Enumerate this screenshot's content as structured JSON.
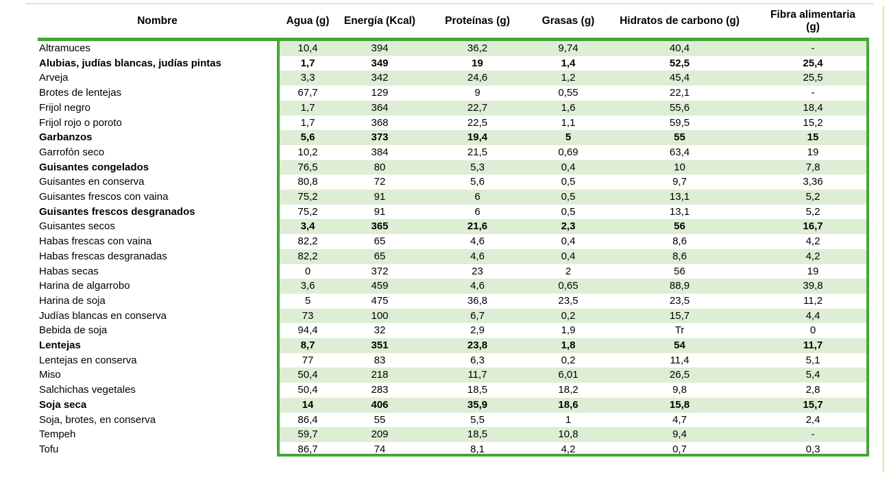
{
  "table": {
    "columns": [
      "Nombre",
      "Agua (g)",
      "Energía (Kcal)",
      "Proteínas (g)",
      "Grasas (g)",
      "Hidratos de carbono (g)",
      "Fibra alimentaria (g)"
    ],
    "rows": [
      {
        "name": "Altramuces",
        "bold_name": false,
        "bold_values": false,
        "values": [
          "10,4",
          "394",
          "36,2",
          "9,74",
          "40,4",
          "-"
        ]
      },
      {
        "name": "Alubias, judías blancas, judías pintas",
        "bold_name": true,
        "bold_values": true,
        "values": [
          "1,7",
          "349",
          "19",
          "1,4",
          "52,5",
          "25,4"
        ]
      },
      {
        "name": "Arveja",
        "bold_name": false,
        "bold_values": false,
        "values": [
          "3,3",
          "342",
          "24,6",
          "1,2",
          "45,4",
          "25,5"
        ]
      },
      {
        "name": "Brotes de lentejas",
        "bold_name": false,
        "bold_values": false,
        "values": [
          "67,7",
          "129",
          "9",
          "0,55",
          "22,1",
          "-"
        ]
      },
      {
        "name": "Frijol negro",
        "bold_name": false,
        "bold_values": false,
        "values": [
          "1,7",
          "364",
          "22,7",
          "1,6",
          "55,6",
          "18,4"
        ]
      },
      {
        "name": "Frijol rojo o poroto",
        "bold_name": false,
        "bold_values": false,
        "values": [
          "1,7",
          "368",
          "22,5",
          "1,1",
          "59,5",
          "15,2"
        ]
      },
      {
        "name": "Garbanzos",
        "bold_name": true,
        "bold_values": true,
        "values": [
          "5,6",
          "373",
          "19,4",
          "5",
          "55",
          "15"
        ]
      },
      {
        "name": "Garrofón seco",
        "bold_name": false,
        "bold_values": false,
        "values": [
          "10,2",
          "384",
          "21,5",
          "0,69",
          "63,4",
          "19"
        ]
      },
      {
        "name": "Guisantes congelados",
        "bold_name": true,
        "bold_values": false,
        "values": [
          "76,5",
          "80",
          "5,3",
          "0,4",
          "10",
          "7,8"
        ]
      },
      {
        "name": "Guisantes en conserva",
        "bold_name": false,
        "bold_values": false,
        "values": [
          "80,8",
          "72",
          "5,6",
          "0,5",
          "9,7",
          "3,36"
        ]
      },
      {
        "name": "Guisantes frescos con vaina",
        "bold_name": false,
        "bold_values": false,
        "values": [
          "75,2",
          "91",
          "6",
          "0,5",
          "13,1",
          "5,2"
        ]
      },
      {
        "name": "Guisantes frescos desgranados",
        "bold_name": true,
        "bold_values": false,
        "values": [
          "75,2",
          "91",
          "6",
          "0,5",
          "13,1",
          "5,2"
        ]
      },
      {
        "name": "Guisantes secos",
        "bold_name": false,
        "bold_values": true,
        "values": [
          "3,4",
          "365",
          "21,6",
          "2,3",
          "56",
          "16,7"
        ]
      },
      {
        "name": "Habas frescas con vaina",
        "bold_name": false,
        "bold_values": false,
        "values": [
          "82,2",
          "65",
          "4,6",
          "0,4",
          "8,6",
          "4,2"
        ]
      },
      {
        "name": "Habas frescas desgranadas",
        "bold_name": false,
        "bold_values": false,
        "values": [
          "82,2",
          "65",
          "4,6",
          "0,4",
          "8,6",
          "4,2"
        ]
      },
      {
        "name": "Habas secas",
        "bold_name": false,
        "bold_values": false,
        "values": [
          "0",
          "372",
          "23",
          "2",
          "56",
          "19"
        ]
      },
      {
        "name": "Harina de algarrobo",
        "bold_name": false,
        "bold_values": false,
        "values": [
          "3,6",
          "459",
          "4,6",
          "0,65",
          "88,9",
          "39,8"
        ]
      },
      {
        "name": "Harina de soja",
        "bold_name": false,
        "bold_values": false,
        "values": [
          "5",
          "475",
          "36,8",
          "23,5",
          "23,5",
          "11,2"
        ]
      },
      {
        "name": "Judías blancas en conserva",
        "bold_name": false,
        "bold_values": false,
        "values": [
          "73",
          "100",
          "6,7",
          "0,2",
          "15,7",
          "4,4"
        ]
      },
      {
        "name": "Bebida de soja",
        "bold_name": false,
        "bold_values": false,
        "values": [
          "94,4",
          "32",
          "2,9",
          "1,9",
          "Tr",
          "0"
        ]
      },
      {
        "name": "Lentejas",
        "bold_name": true,
        "bold_values": true,
        "values": [
          "8,7",
          "351",
          "23,8",
          "1,8",
          "54",
          "11,7"
        ]
      },
      {
        "name": "Lentejas en conserva",
        "bold_name": false,
        "bold_values": false,
        "values": [
          "77",
          "83",
          "6,3",
          "0,2",
          "11,4",
          "5,1"
        ]
      },
      {
        "name": "Miso",
        "bold_name": false,
        "bold_values": false,
        "values": [
          "50,4",
          "218",
          "11,7",
          "6,01",
          "26,5",
          "5,4"
        ]
      },
      {
        "name": "Salchichas vegetales",
        "bold_name": false,
        "bold_values": false,
        "values": [
          "50,4",
          "283",
          "18,5",
          "18,2",
          "9,8",
          "2,8"
        ]
      },
      {
        "name": "Soja seca",
        "bold_name": true,
        "bold_values": true,
        "values": [
          "14",
          "406",
          "35,9",
          "18,6",
          "15,8",
          "15,7"
        ]
      },
      {
        "name": "Soja, brotes, en conserva",
        "bold_name": false,
        "bold_values": false,
        "values": [
          "86,4",
          "55",
          "5,5",
          "1",
          "4,7",
          "2,4"
        ]
      },
      {
        "name": "Tempeh",
        "bold_name": false,
        "bold_values": false,
        "values": [
          "59,7",
          "209",
          "18,5",
          "10,8",
          "9,4",
          "-"
        ]
      },
      {
        "name": "Tofu",
        "bold_name": false,
        "bold_values": false,
        "values": [
          "86,7",
          "74",
          "8,1",
          "4,2",
          "0,7",
          "0,3"
        ]
      }
    ]
  },
  "colors": {
    "border_green": "#44a636",
    "stripe_green": "#ddeed5",
    "yellow_rule": "#efe97e",
    "hairline_gray": "#c9c9c9"
  }
}
